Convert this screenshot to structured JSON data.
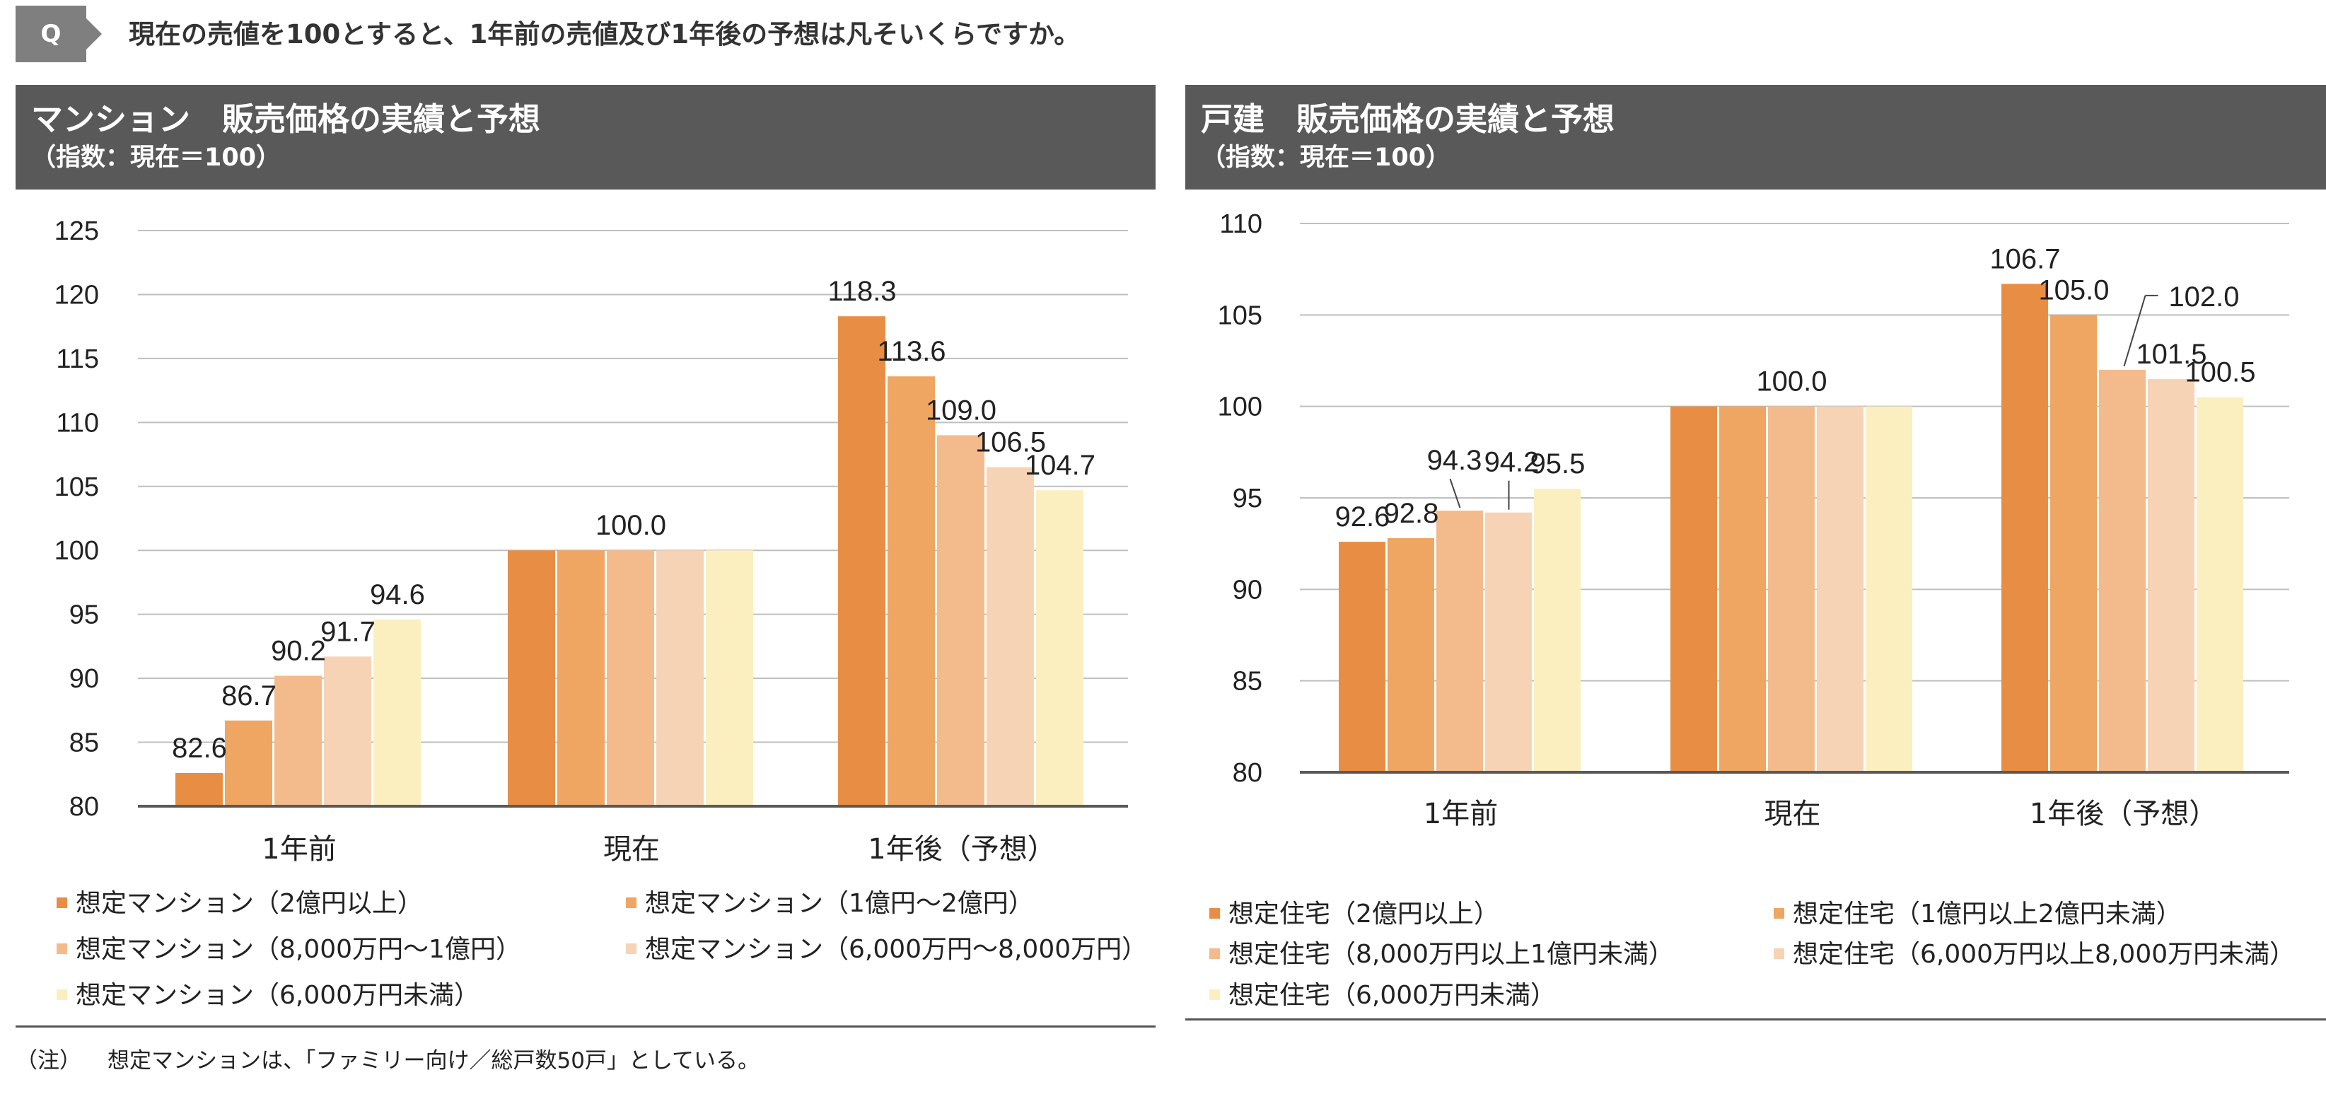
{
  "question": {
    "badge": "Q",
    "text": "現在の売値を100とすると、1年前の売値及び1年後の予想は凡そいくらですか。"
  },
  "colors": {
    "series": [
      "#e88e44",
      "#eea662",
      "#f3bb8c",
      "#f6d3b5",
      "#fbefc0"
    ],
    "header_bg": "#595959",
    "grid": "#bfbfbf"
  },
  "chart_data": [
    {
      "type": "bar",
      "title": "マンション　販売価格の実績と予想",
      "subtitle": "（指数：現在＝100）",
      "categories": [
        "1年前",
        "現在",
        "1年後（予想）"
      ],
      "ylim": [
        80,
        125
      ],
      "yticks": [
        80,
        85,
        90,
        95,
        100,
        105,
        110,
        115,
        120,
        125
      ],
      "grid": true,
      "legend_position": "bottom",
      "series": [
        {
          "name": "想定マンション（2億円以上）",
          "values": [
            82.6,
            100.0,
            118.3
          ]
        },
        {
          "name": "想定マンション（1億円～2億円）",
          "values": [
            86.7,
            100.0,
            113.6
          ]
        },
        {
          "name": "想定マンション（8,000万円～1億円）",
          "values": [
            90.2,
            100.0,
            109.0
          ]
        },
        {
          "name": "想定マンション（6,000万円～8,000万円）",
          "values": [
            91.7,
            100.0,
            106.5
          ]
        },
        {
          "name": "想定マンション（6,000万円未満）",
          "values": [
            94.6,
            100.0,
            104.7
          ]
        }
      ],
      "data_labels": [
        "82.6",
        "86.7",
        "90.2",
        "91.7",
        "94.6",
        "100.0",
        "118.3",
        "113.6",
        "109.0",
        "106.5",
        "104.7"
      ]
    },
    {
      "type": "bar",
      "title": "戸建　販売価格の実績と予想",
      "subtitle": "（指数：現在＝100）",
      "categories": [
        "1年前",
        "現在",
        "1年後（予想）"
      ],
      "ylim": [
        80,
        110
      ],
      "yticks": [
        80,
        85,
        90,
        95,
        100,
        105,
        110
      ],
      "grid": true,
      "legend_position": "bottom",
      "series": [
        {
          "name": "想定住宅（2億円以上）",
          "values": [
            92.6,
            100.0,
            106.7
          ]
        },
        {
          "name": "想定住宅（1億円以上2億円未満）",
          "values": [
            92.8,
            100.0,
            105.0
          ]
        },
        {
          "name": "想定住宅（8,000万円以上1億円未満）",
          "values": [
            94.3,
            100.0,
            102.0
          ]
        },
        {
          "name": "想定住宅（6,000万円以上8,000万円未満）",
          "values": [
            94.2,
            100.0,
            101.5
          ]
        },
        {
          "name": "想定住宅（6,000万円未満）",
          "values": [
            95.5,
            100.0,
            100.5
          ]
        }
      ],
      "data_labels": [
        "92.6",
        "92.8",
        "94.3",
        "94.2",
        "95.5",
        "100.0",
        "106.7",
        "105.0",
        "102.0",
        "101.5",
        "100.5"
      ]
    }
  ],
  "note": {
    "label": "（注）",
    "text": "想定マンションは、「ファミリー向け／総戸数50戸」としている。"
  }
}
